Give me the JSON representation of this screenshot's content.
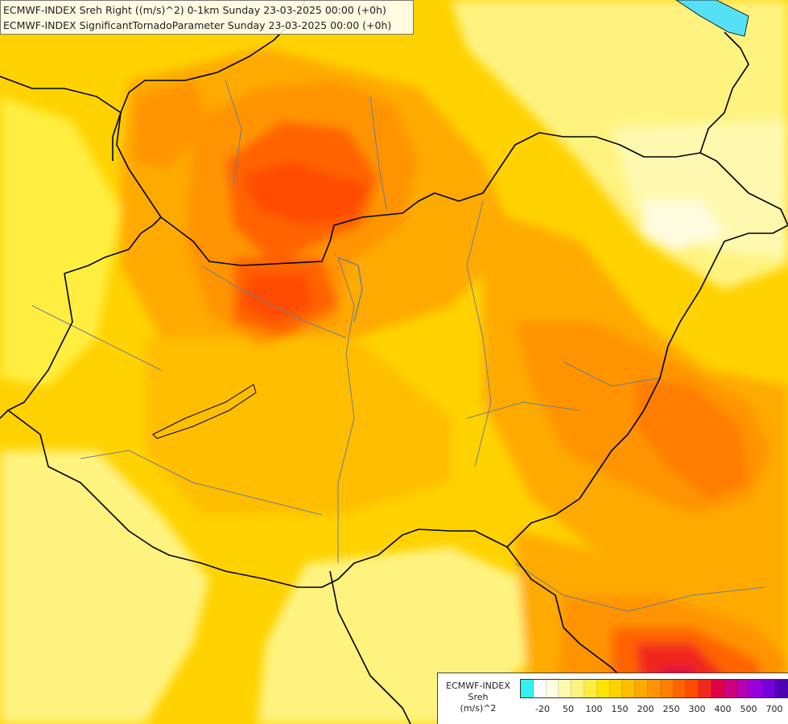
{
  "header": {
    "line1": "ECMWF-INDEX Sreh Right ((m/s)^2) 0-1km Sunday 23-03-2025 00:00 (+0h)",
    "line2": "ECMWF-INDEX SignificantTornadoParameter Sunday 23-03-2025 00:00 (+0h)"
  },
  "legend": {
    "line1": "ECMWF-INDEX",
    "line2": "Sreh",
    "line3": "(m/s)^2",
    "colors": [
      "#33f0f0",
      "#ffffff",
      "#fffce0",
      "#fff9b0",
      "#fff380",
      "#ffee40",
      "#ffe400",
      "#ffd200",
      "#ffbe00",
      "#ffaa00",
      "#ff9400",
      "#ff7d00",
      "#ff6400",
      "#ff4b00",
      "#f0281e",
      "#e00046",
      "#cc0080",
      "#b400b4",
      "#9600dc",
      "#7800dc",
      "#5000b4",
      "#280090"
    ],
    "ticks": [
      "-20",
      "50",
      "100",
      "150",
      "200",
      "250",
      "300",
      "400",
      "500",
      "700"
    ]
  },
  "palette": {
    "lake": "#55e0f5",
    "border": "#000000",
    "river": "#6e7f90"
  }
}
